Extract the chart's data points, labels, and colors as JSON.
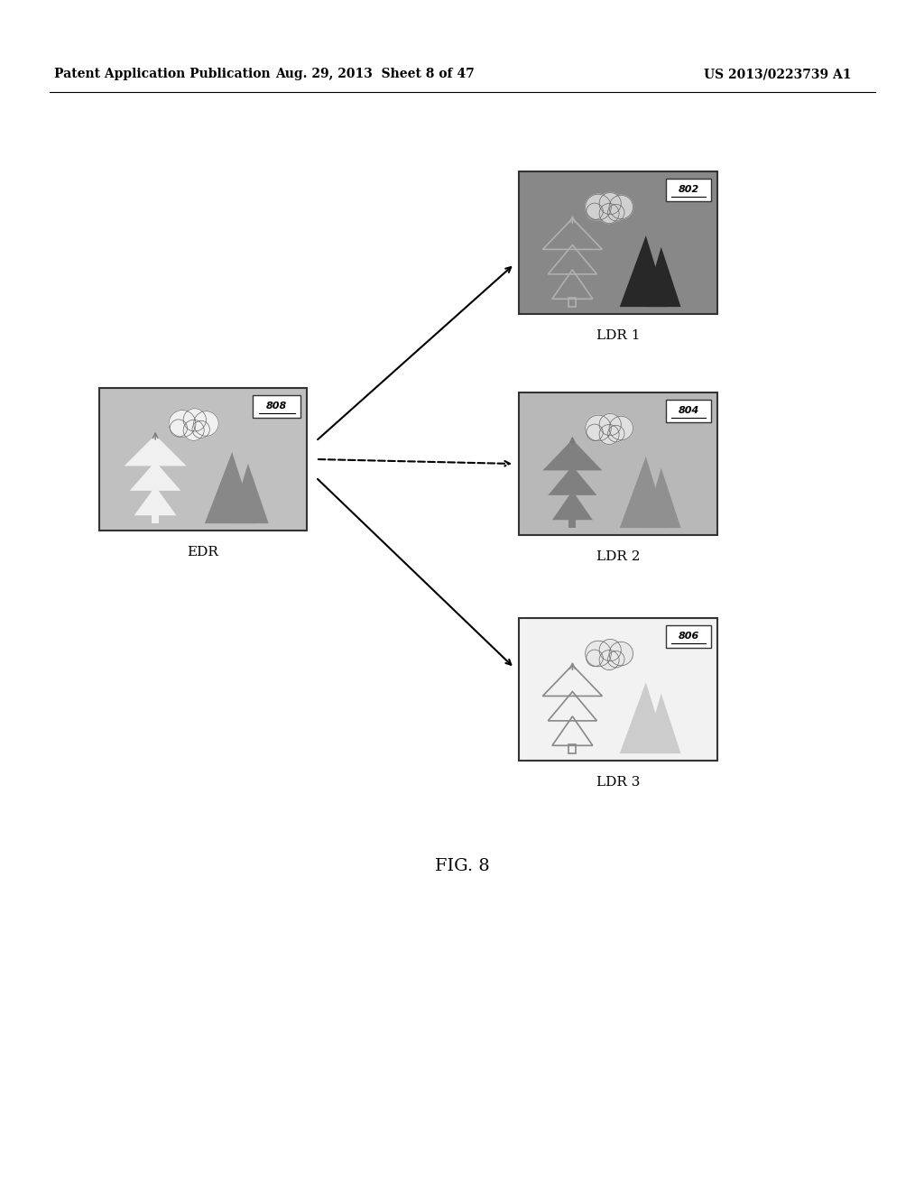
{
  "header_left": "Patent Application Publication",
  "header_mid": "Aug. 29, 2013  Sheet 8 of 47",
  "header_right": "US 2013/0223739 A1",
  "fig_label": "FIG. 8",
  "edr_label": "EDR",
  "edr_num": "808",
  "ldr1_label": "LDR 1",
  "ldr1_num": "802",
  "ldr2_label": "LDR 2",
  "ldr2_num": "804",
  "ldr3_label": "LDR 3",
  "ldr3_num": "806",
  "bg_color": "#ffffff"
}
